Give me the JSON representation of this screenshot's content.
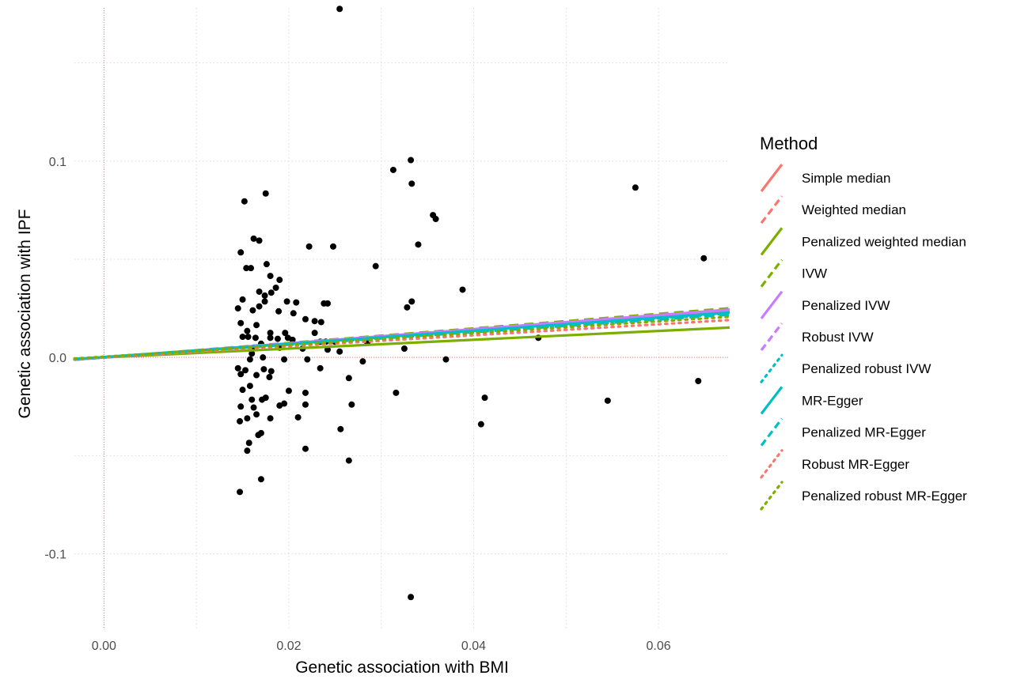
{
  "chart_data": {
    "type": "scatter",
    "title": "",
    "xlabel": "Genetic association with BMI",
    "ylabel": "Genetic association with IPF",
    "xlim": [
      -0.0032,
      0.0677
    ],
    "ylim": [
      -0.138,
      0.178
    ],
    "x_ticks": [
      0.0,
      0.02,
      0.04,
      0.06
    ],
    "x_tick_labels": [
      "0.00",
      "0.02",
      "0.04",
      "0.06"
    ],
    "y_ticks": [
      -0.1,
      0.0,
      0.1
    ],
    "y_tick_labels": [
      "-0.1",
      "0.0",
      "0.1"
    ],
    "grid": true,
    "reference_lines": {
      "x": 0,
      "y": 0,
      "color": "#F8766D"
    },
    "legend": {
      "title": "Method",
      "position": "right",
      "entries": [
        {
          "label": "Simple median",
          "color": "#F8766D",
          "linetype": "solid"
        },
        {
          "label": "Weighted median",
          "color": "#F8766D",
          "linetype": "dashed"
        },
        {
          "label": "Penalized weighted median",
          "color": "#7CAE00",
          "linetype": "solid"
        },
        {
          "label": "IVW",
          "color": "#7CAE00",
          "linetype": "dashed"
        },
        {
          "label": "Penalized IVW",
          "color": "#C77CFF",
          "linetype": "solid"
        },
        {
          "label": "Robust IVW",
          "color": "#C77CFF",
          "linetype": "dashed"
        },
        {
          "label": "Penalized robust IVW",
          "color": "#00BFC4",
          "linetype": "dotted"
        },
        {
          "label": "MR-Egger",
          "color": "#00BFC4",
          "linetype": "solid"
        },
        {
          "label": "Penalized MR-Egger",
          "color": "#00BFC4",
          "linetype": "dashed"
        },
        {
          "label": "Robust MR-Egger",
          "color": "#F8766D",
          "linetype": "dotted"
        },
        {
          "label": "Penalized robust MR-Egger",
          "color": "#7CAE00",
          "linetype": "dotted"
        }
      ]
    },
    "lines": [
      {
        "method": "Simple median",
        "intercept": 0.0,
        "slope": 0.345
      },
      {
        "method": "Weighted median",
        "intercept": 0.0,
        "slope": 0.34
      },
      {
        "method": "Penalized weighted median",
        "intercept": 0.0,
        "slope": 0.225
      },
      {
        "method": "IVW",
        "intercept": 0.0,
        "slope": 0.37
      },
      {
        "method": "Penalized IVW",
        "intercept": 0.0,
        "slope": 0.36
      },
      {
        "method": "Robust IVW",
        "intercept": 0.0,
        "slope": 0.355
      },
      {
        "method": "Penalized robust IVW",
        "intercept": 0.0,
        "slope": 0.33
      },
      {
        "method": "MR-Egger",
        "intercept": 0.0002,
        "slope": 0.335
      },
      {
        "method": "Penalized MR-Egger",
        "intercept": 0.0001,
        "slope": 0.32
      },
      {
        "method": "Robust MR-Egger",
        "intercept": 0.0001,
        "slope": 0.28
      },
      {
        "method": "Penalized robust MR-Egger",
        "intercept": 0.0004,
        "slope": 0.3
      }
    ],
    "points": [
      [
        0.0255,
        0.1775
      ],
      [
        0.0332,
        0.1005
      ],
      [
        0.0313,
        0.0955
      ],
      [
        0.0333,
        0.0885
      ],
      [
        0.0575,
        0.0865
      ],
      [
        0.0175,
        0.0835
      ],
      [
        0.0152,
        0.0795
      ],
      [
        0.0356,
        0.0725
      ],
      [
        0.0359,
        0.0705
      ],
      [
        0.0162,
        0.0605
      ],
      [
        0.0168,
        0.0595
      ],
      [
        0.034,
        0.0575
      ],
      [
        0.0222,
        0.0565
      ],
      [
        0.0248,
        0.0565
      ],
      [
        0.0148,
        0.0535
      ],
      [
        0.0649,
        0.0505
      ],
      [
        0.0176,
        0.0475
      ],
      [
        0.0294,
        0.0465
      ],
      [
        0.0154,
        0.0455
      ],
      [
        0.0159,
        0.0455
      ],
      [
        0.018,
        0.0415
      ],
      [
        0.019,
        0.0395
      ],
      [
        0.0186,
        0.0355
      ],
      [
        0.0168,
        0.0335
      ],
      [
        0.0388,
        0.0345
      ],
      [
        0.0181,
        0.033
      ],
      [
        0.0174,
        0.0315
      ],
      [
        0.015,
        0.0295
      ],
      [
        0.0174,
        0.0285
      ],
      [
        0.0198,
        0.0285
      ],
      [
        0.0208,
        0.028
      ],
      [
        0.0238,
        0.0275
      ],
      [
        0.0242,
        0.0275
      ],
      [
        0.0333,
        0.0285
      ],
      [
        0.0168,
        0.026
      ],
      [
        0.0145,
        0.025
      ],
      [
        0.0161,
        0.024
      ],
      [
        0.0189,
        0.0235
      ],
      [
        0.0205,
        0.0225
      ],
      [
        0.0328,
        0.0255
      ],
      [
        0.0218,
        0.0195
      ],
      [
        0.0228,
        0.0185
      ],
      [
        0.0235,
        0.018
      ],
      [
        0.0148,
        0.0175
      ],
      [
        0.0165,
        0.0165
      ],
      [
        0.0155,
        0.0135
      ],
      [
        0.018,
        0.0125
      ],
      [
        0.0196,
        0.0125
      ],
      [
        0.0228,
        0.0125
      ],
      [
        0.015,
        0.0105
      ],
      [
        0.0156,
        0.0105
      ],
      [
        0.0164,
        0.01
      ],
      [
        0.018,
        0.01
      ],
      [
        0.0188,
        0.0095
      ],
      [
        0.0199,
        0.01
      ],
      [
        0.0204,
        0.009
      ],
      [
        0.0234,
        0.008
      ],
      [
        0.024,
        0.008
      ],
      [
        0.025,
        0.008
      ],
      [
        0.0285,
        0.0075
      ],
      [
        0.047,
        0.01
      ],
      [
        0.017,
        0.007
      ],
      [
        0.0162,
        0.005
      ],
      [
        0.019,
        0.005
      ],
      [
        0.0215,
        0.0045
      ],
      [
        0.0242,
        0.004
      ],
      [
        0.0255,
        0.003
      ],
      [
        0.0325,
        0.0045
      ],
      [
        0.016,
        0.002
      ],
      [
        0.0172,
        0.0
      ],
      [
        0.0158,
        -0.001
      ],
      [
        0.0195,
        -0.001
      ],
      [
        0.022,
        -0.001
      ],
      [
        0.028,
        -0.002
      ],
      [
        0.037,
        -0.001
      ],
      [
        0.0145,
        -0.0055
      ],
      [
        0.0153,
        -0.0065
      ],
      [
        0.0173,
        -0.006
      ],
      [
        0.0181,
        -0.007
      ],
      [
        0.0234,
        -0.0055
      ],
      [
        0.0148,
        -0.0085
      ],
      [
        0.0165,
        -0.009
      ],
      [
        0.0179,
        -0.01
      ],
      [
        0.0265,
        -0.0105
      ],
      [
        0.02,
        -0.017
      ],
      [
        0.0218,
        -0.018
      ],
      [
        0.015,
        -0.0165
      ],
      [
        0.0158,
        -0.0145
      ],
      [
        0.0316,
        -0.018
      ],
      [
        0.0412,
        -0.0205
      ],
      [
        0.0643,
        -0.012
      ],
      [
        0.0545,
        -0.022
      ],
      [
        0.016,
        -0.0215
      ],
      [
        0.0171,
        -0.0215
      ],
      [
        0.0175,
        -0.0205
      ],
      [
        0.019,
        -0.0245
      ],
      [
        0.0195,
        -0.0235
      ],
      [
        0.0218,
        -0.024
      ],
      [
        0.0148,
        -0.025
      ],
      [
        0.0162,
        -0.0255
      ],
      [
        0.0268,
        -0.024
      ],
      [
        0.0165,
        -0.029
      ],
      [
        0.021,
        -0.0305
      ],
      [
        0.0155,
        -0.031
      ],
      [
        0.018,
        -0.031
      ],
      [
        0.0147,
        -0.0325
      ],
      [
        0.0408,
        -0.034
      ],
      [
        0.0256,
        -0.0365
      ],
      [
        0.017,
        -0.0385
      ],
      [
        0.0167,
        -0.0395
      ],
      [
        0.0157,
        -0.0435
      ],
      [
        0.0218,
        -0.0465
      ],
      [
        0.0155,
        -0.0475
      ],
      [
        0.0265,
        -0.0525
      ],
      [
        0.017,
        -0.062
      ],
      [
        0.0147,
        -0.0685
      ],
      [
        0.0332,
        -0.122
      ]
    ]
  }
}
